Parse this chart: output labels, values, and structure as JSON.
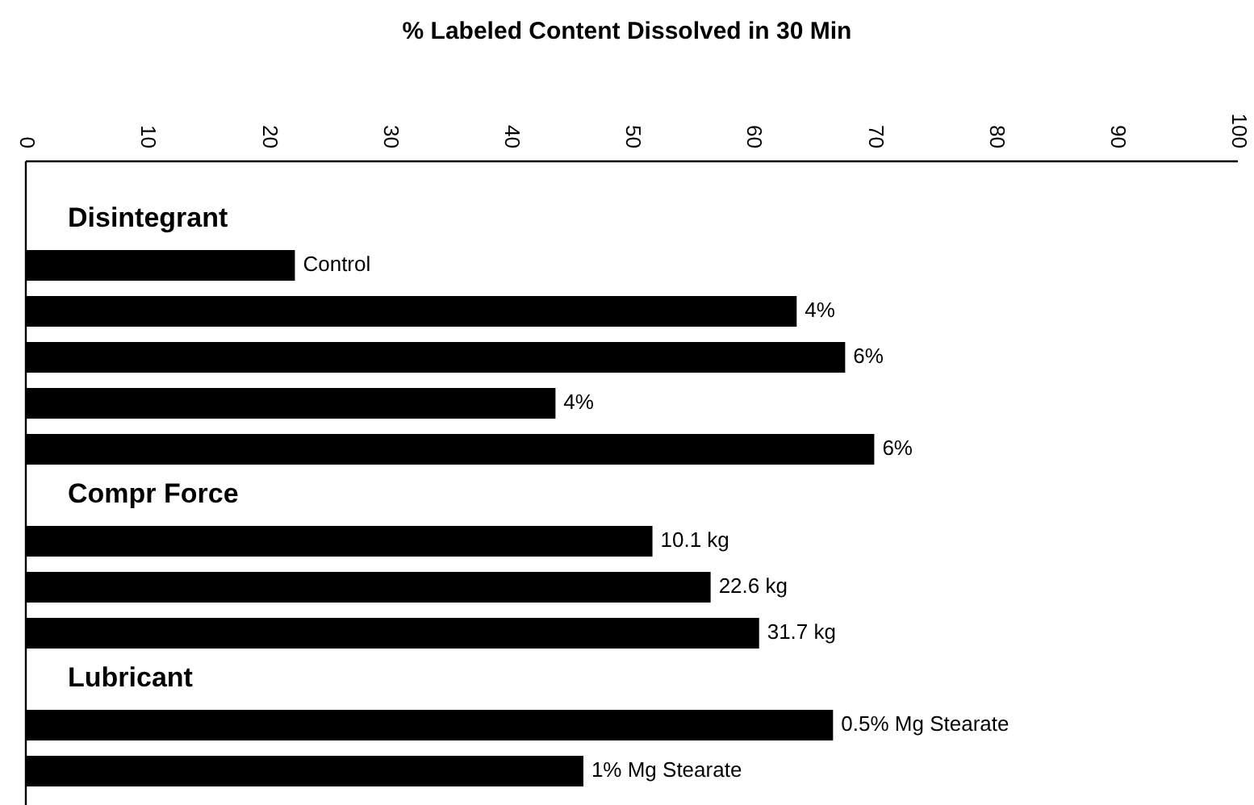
{
  "chart_data": {
    "type": "bar",
    "orientation": "horizontal",
    "title": "% Labeled Content Dissolved in 30 Min",
    "categories": [
      "Disintegrant",
      "Control",
      "4%",
      "6%",
      "4%",
      "6%",
      "Compr Force",
      "10.1 kg",
      "22.6 kg",
      "31.7 kg",
      "Lubricant",
      "0.5% Mg Stearate",
      "1% Mg Stearate"
    ],
    "values": [
      null,
      22.2,
      63.6,
      67.6,
      43.7,
      70.0,
      null,
      51.7,
      56.5,
      60.5,
      null,
      66.6,
      46.0
    ],
    "color": "#000000",
    "xlim": [
      0,
      100
    ],
    "xticks": [
      0,
      10,
      20,
      30,
      40,
      50,
      60,
      70,
      80,
      90,
      100
    ],
    "grid": false
  }
}
